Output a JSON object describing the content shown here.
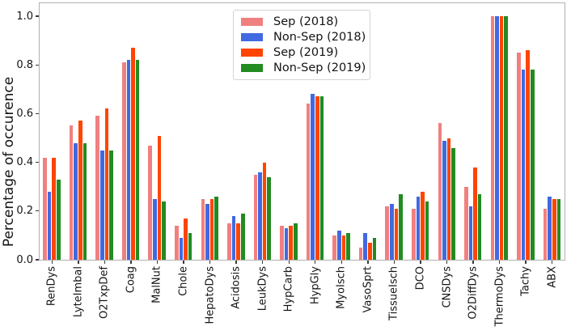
{
  "chart_data": {
    "type": "bar",
    "title": "",
    "xlabel": "",
    "ylabel": "Percentage of occurence",
    "ylim": [
      0,
      1.05
    ],
    "yticks": [
      "0.0",
      "0.2",
      "0.4",
      "0.6",
      "0.8",
      "1.0"
    ],
    "grid": false,
    "legend_position": "upper center",
    "categories": [
      "RenDys",
      "LyteImbal",
      "O2TxpDef",
      "Coag",
      "MalNut",
      "Chole",
      "HepatoDys",
      "Acidosis",
      "LeukDys",
      "HypCarb",
      "HypGly",
      "MyoIsch",
      "VasoSprt",
      "TissueIsch",
      "DCO",
      "CNSDys",
      "O2DiffDys",
      "ThermoDys",
      "Tachy",
      "ABX"
    ],
    "series": [
      {
        "name": "Sep (2018)",
        "color": "#f08080",
        "values": [
          0.42,
          0.55,
          0.59,
          0.81,
          0.47,
          0.14,
          0.25,
          0.15,
          0.35,
          0.14,
          0.64,
          0.1,
          0.05,
          0.22,
          0.21,
          0.56,
          0.3,
          1.0,
          0.85,
          0.21
        ]
      },
      {
        "name": "Non-Sep (2018)",
        "color": "#4169e1",
        "values": [
          0.28,
          0.48,
          0.45,
          0.82,
          0.25,
          0.09,
          0.23,
          0.18,
          0.36,
          0.13,
          0.68,
          0.12,
          0.11,
          0.23,
          0.26,
          0.49,
          0.22,
          1.0,
          0.78,
          0.26
        ]
      },
      {
        "name": "Sep (2019)",
        "color": "#ff4500",
        "values": [
          0.42,
          0.57,
          0.62,
          0.87,
          0.51,
          0.17,
          0.25,
          0.15,
          0.4,
          0.14,
          0.67,
          0.1,
          0.07,
          0.21,
          0.28,
          0.5,
          0.38,
          1.0,
          0.86,
          0.25
        ]
      },
      {
        "name": "Non-Sep (2019)",
        "color": "#228b22",
        "values": [
          0.33,
          0.48,
          0.45,
          0.82,
          0.24,
          0.11,
          0.26,
          0.19,
          0.34,
          0.15,
          0.67,
          0.11,
          0.09,
          0.27,
          0.24,
          0.46,
          0.27,
          1.0,
          0.78,
          0.25
        ]
      }
    ]
  }
}
